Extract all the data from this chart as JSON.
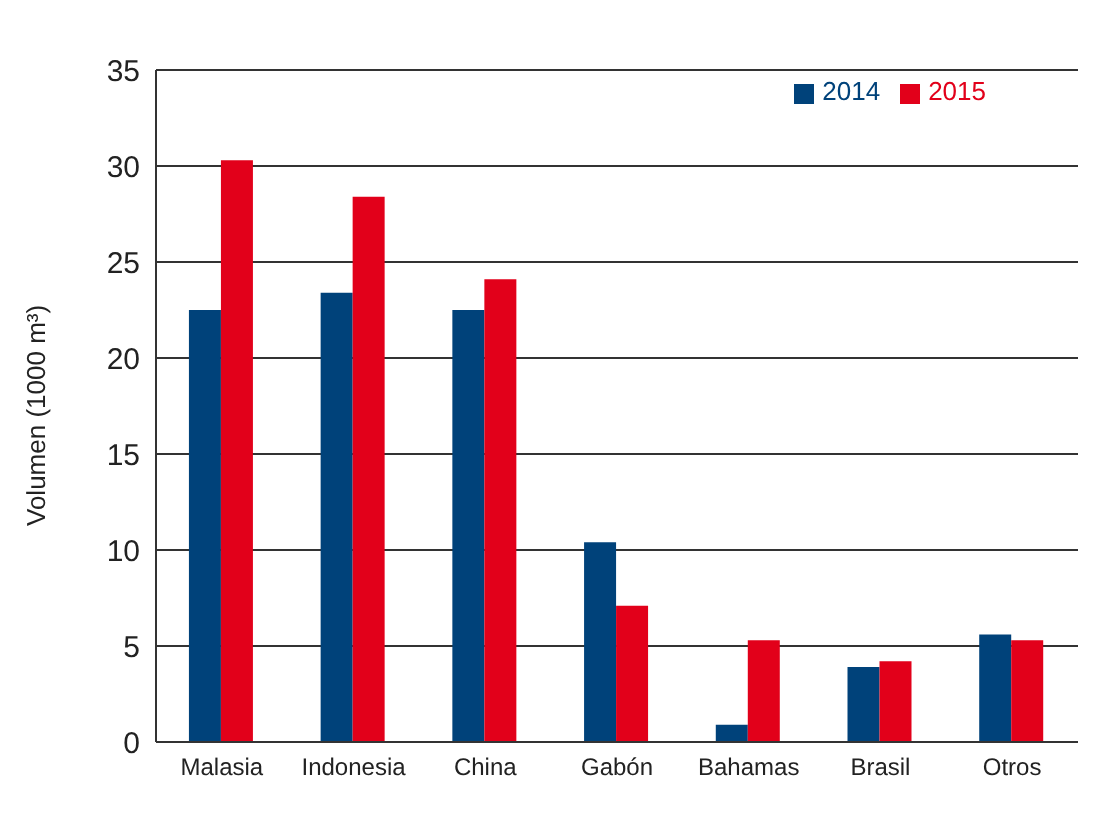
{
  "chart_data": {
    "type": "bar",
    "ylabel": "Volumen (1000 m³)",
    "categories": [
      "Malasia",
      "Indonesia",
      "China",
      "Gabón",
      "Bahamas",
      "Brasil",
      "Otros"
    ],
    "series": [
      {
        "name": "2014",
        "color": "#00427a",
        "values": [
          22.5,
          23.4,
          22.5,
          10.4,
          0.9,
          3.9,
          5.6
        ]
      },
      {
        "name": "2015",
        "color": "#e2001a",
        "values": [
          30.3,
          28.4,
          24.1,
          7.1,
          5.3,
          4.2,
          5.3
        ]
      }
    ],
    "ylim": [
      0,
      35
    ],
    "yticks": [
      0,
      5,
      10,
      15,
      20,
      25,
      30,
      35
    ],
    "grid": "y",
    "legend": "top right"
  }
}
